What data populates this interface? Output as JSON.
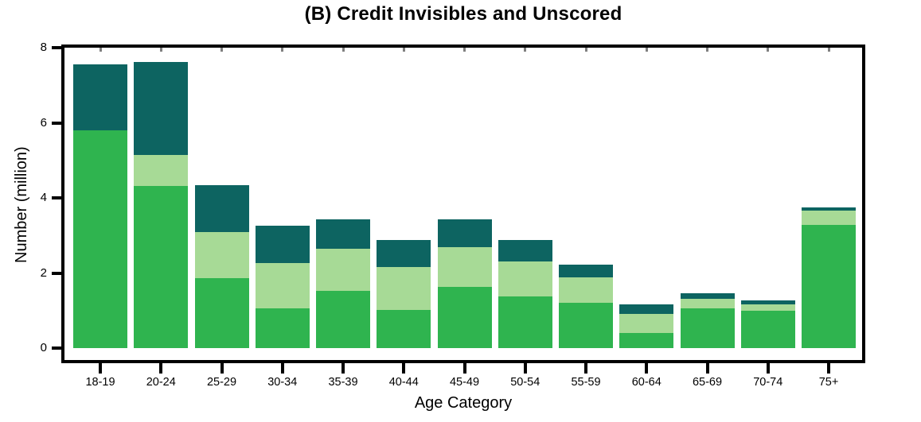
{
  "chart_data": {
    "type": "bar",
    "stacked": true,
    "title": "(B) Credit Invisibles and Unscored",
    "xlabel": "Age Category",
    "ylabel": "Number (million)",
    "ylim": [
      0,
      8
    ],
    "yticks": [
      0,
      2,
      4,
      6,
      8
    ],
    "grid": false,
    "legend": "none",
    "background_color": "#ffffff",
    "axis_color": "#000000",
    "categories": [
      "18-19",
      "20-24",
      "25-29",
      "30-34",
      "35-39",
      "40-44",
      "45-49",
      "50-54",
      "55-59",
      "60-64",
      "65-69",
      "70-74",
      "75+"
    ],
    "series": [
      {
        "name": "green-bottom-segment",
        "color": "#2fb44f",
        "values": [
          5.8,
          4.32,
          1.86,
          1.05,
          1.52,
          1.01,
          1.63,
          1.38,
          1.2,
          0.41,
          1.05,
          0.99,
          3.29
        ]
      },
      {
        "name": "light-green-middle-segment",
        "color": "#a7da96",
        "values": [
          0.0,
          0.82,
          1.24,
          1.22,
          1.12,
          1.15,
          1.06,
          0.92,
          0.68,
          0.51,
          0.27,
          0.18,
          0.38
        ]
      },
      {
        "name": "dark-teal-top-segment",
        "color": "#0d6461",
        "values": [
          1.75,
          2.49,
          1.24,
          1.0,
          0.79,
          0.71,
          0.74,
          0.57,
          0.34,
          0.25,
          0.15,
          0.1,
          0.08
        ]
      }
    ],
    "totals": [
      7.55,
      7.63,
      4.34,
      3.27,
      3.43,
      2.87,
      3.43,
      2.87,
      2.22,
      1.17,
      1.47,
      1.27,
      3.75
    ]
  }
}
